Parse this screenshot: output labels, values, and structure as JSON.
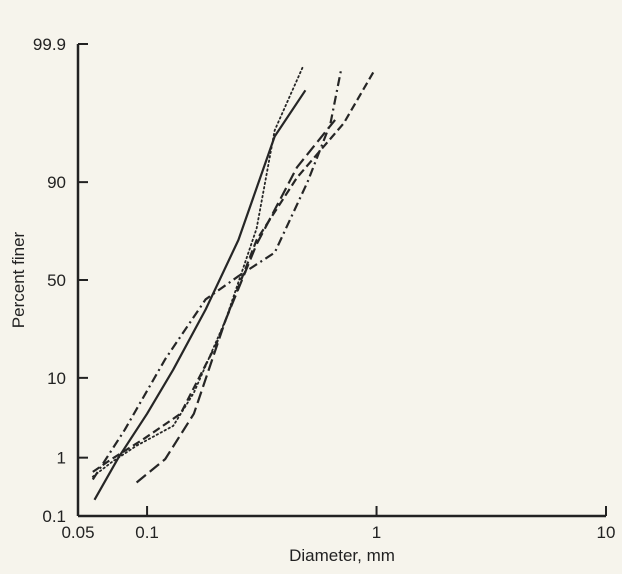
{
  "chart_data": {
    "type": "line",
    "title": "",
    "xlabel": "Diameter, mm",
    "ylabel": "Percent finer",
    "x_scale": "log",
    "y_scale": "probability",
    "xlim": [
      0.05,
      10
    ],
    "ylim": [
      0.1,
      99.9
    ],
    "x_ticks": [
      0.05,
      0.1,
      1,
      10
    ],
    "x_tick_labels": [
      "0.05",
      "0.1",
      "1",
      "10"
    ],
    "y_ticks": [
      0.1,
      1,
      10,
      50,
      90,
      99.9
    ],
    "y_tick_labels": [
      "0.1",
      "1",
      "10",
      "50",
      "90",
      "99.9"
    ],
    "grid": false,
    "legend": "none",
    "line_color": "#262626",
    "series": [
      {
        "style": "solid",
        "points": [
          [
            0.059,
            0.2
          ],
          [
            0.075,
            1
          ],
          [
            0.1,
            4
          ],
          [
            0.13,
            12
          ],
          [
            0.18,
            35
          ],
          [
            0.25,
            70
          ],
          [
            0.36,
            97
          ],
          [
            0.49,
            99.35
          ]
        ]
      },
      {
        "style": "dotted",
        "points": [
          [
            0.058,
            0.5
          ],
          [
            0.07,
            0.85
          ],
          [
            0.09,
            1.5
          ],
          [
            0.13,
            2.8
          ],
          [
            0.16,
            7
          ],
          [
            0.22,
            30
          ],
          [
            0.3,
            75
          ],
          [
            0.36,
            97.5
          ],
          [
            0.48,
            99.75
          ]
        ]
      },
      {
        "style": "dashed",
        "points": [
          [
            0.058,
            0.6
          ],
          [
            0.07,
            0.95
          ],
          [
            0.095,
            1.8
          ],
          [
            0.14,
            4
          ],
          [
            0.2,
            20
          ],
          [
            0.3,
            70
          ],
          [
            0.45,
            91
          ],
          [
            0.72,
            98
          ],
          [
            0.98,
            99.7
          ]
        ]
      },
      {
        "style": "long-dash",
        "points": [
          [
            0.09,
            0.4
          ],
          [
            0.12,
            0.95
          ],
          [
            0.16,
            4
          ],
          [
            0.22,
            30
          ],
          [
            0.3,
            68
          ],
          [
            0.45,
            93
          ],
          [
            0.66,
            98.2
          ]
        ]
      },
      {
        "style": "dash-dot",
        "points": [
          [
            0.058,
            0.45
          ],
          [
            0.08,
            2.5
          ],
          [
            0.12,
            15
          ],
          [
            0.18,
            40
          ],
          [
            0.25,
            52
          ],
          [
            0.36,
            64
          ],
          [
            0.5,
            90
          ],
          [
            0.63,
            98
          ],
          [
            0.7,
            99.7
          ]
        ]
      }
    ]
  }
}
